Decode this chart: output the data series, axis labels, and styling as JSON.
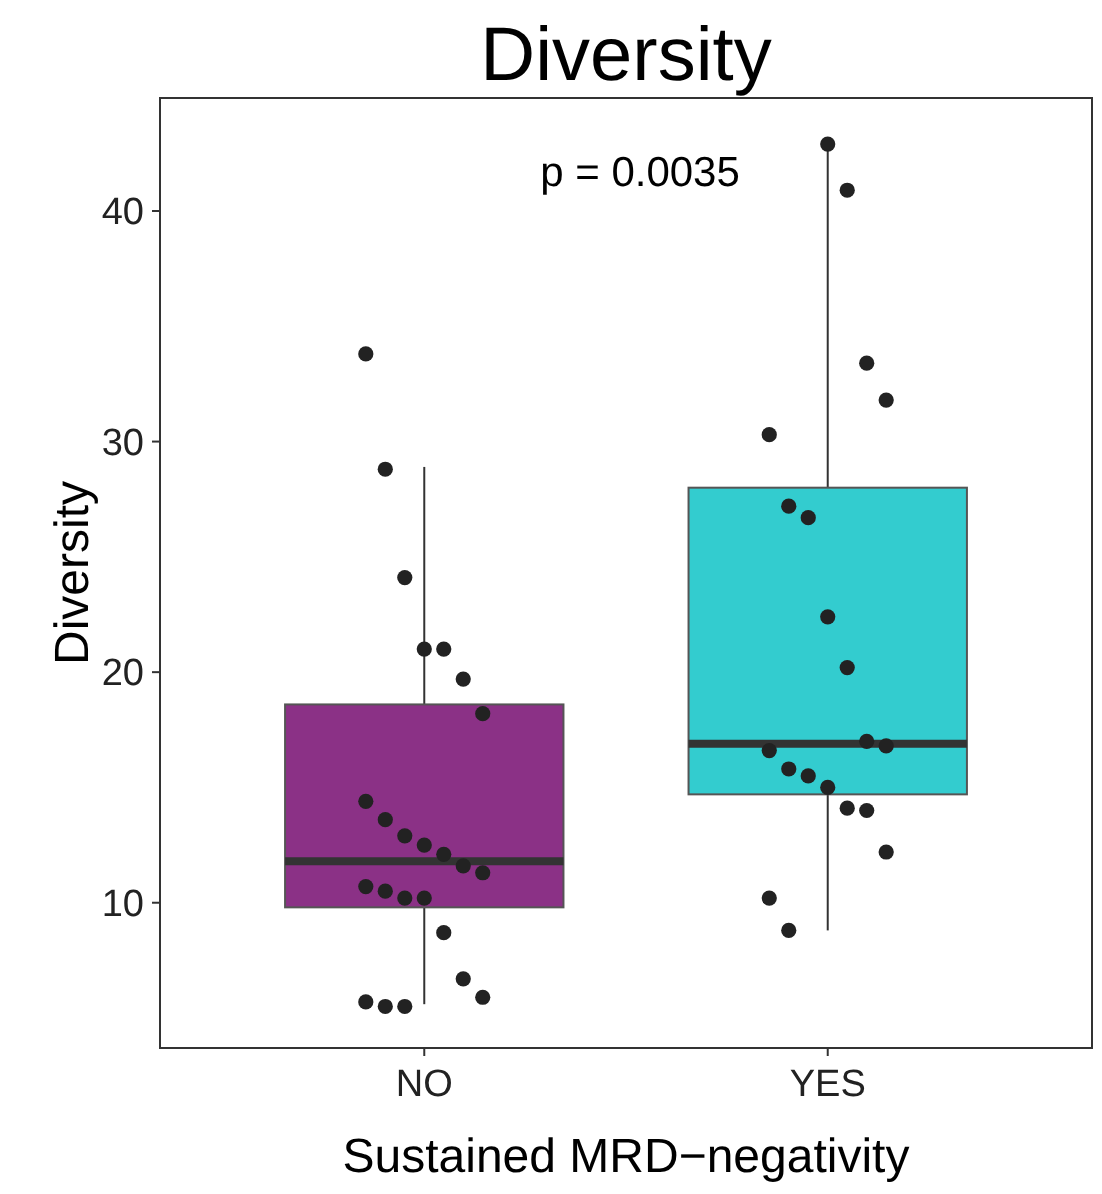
{
  "chart_data": {
    "type": "box",
    "title": "Diversity",
    "xlabel": "Sustained MRD−negativity",
    "ylabel": "Diversity",
    "categories": [
      "NO",
      "YES"
    ],
    "colors": [
      "#8b3186",
      "#33cccf"
    ],
    "boxes": [
      {
        "low": 5.6,
        "q1": 9.8,
        "median": 11.8,
        "q3": 18.6,
        "high": 28.9
      },
      {
        "low": 8.8,
        "q1": 14.7,
        "median": 16.9,
        "q3": 28.0,
        "high": 42.9
      }
    ],
    "series": [
      {
        "type": "scatter",
        "color": "#222222",
        "x": [
          "NO",
          "NO",
          "NO",
          "NO",
          "NO",
          "NO",
          "NO",
          "NO",
          "NO",
          "NO",
          "NO",
          "NO",
          "NO",
          "NO",
          "NO",
          "NO",
          "NO",
          "NO",
          "NO",
          "NO",
          "NO",
          "NO",
          "NO",
          "NO",
          "YES",
          "YES",
          "YES",
          "YES",
          "YES",
          "YES",
          "YES",
          "YES",
          "YES",
          "YES",
          "YES",
          "YES",
          "YES",
          "YES",
          "YES",
          "YES",
          "YES",
          "YES",
          "YES",
          "YES"
        ],
        "values": [
          33.8,
          28.8,
          24.1,
          21.0,
          21.0,
          19.7,
          18.2,
          14.4,
          13.6,
          12.9,
          12.5,
          12.1,
          11.6,
          11.3,
          10.7,
          10.5,
          10.2,
          10.2,
          8.7,
          6.7,
          5.9,
          5.7,
          5.5,
          5.5,
          42.9,
          40.9,
          33.4,
          31.8,
          30.3,
          27.2,
          26.7,
          22.4,
          20.2,
          17.0,
          16.8,
          16.6,
          15.8,
          15.5,
          15.0,
          14.1,
          14.0,
          12.2,
          10.2,
          8.8
        ]
      }
    ],
    "annotations": [
      "p = 0.0035"
    ],
    "ylim": [
      3.7,
      44.9
    ],
    "yticks": [
      10,
      20,
      30,
      40
    ],
    "grid": false
  }
}
